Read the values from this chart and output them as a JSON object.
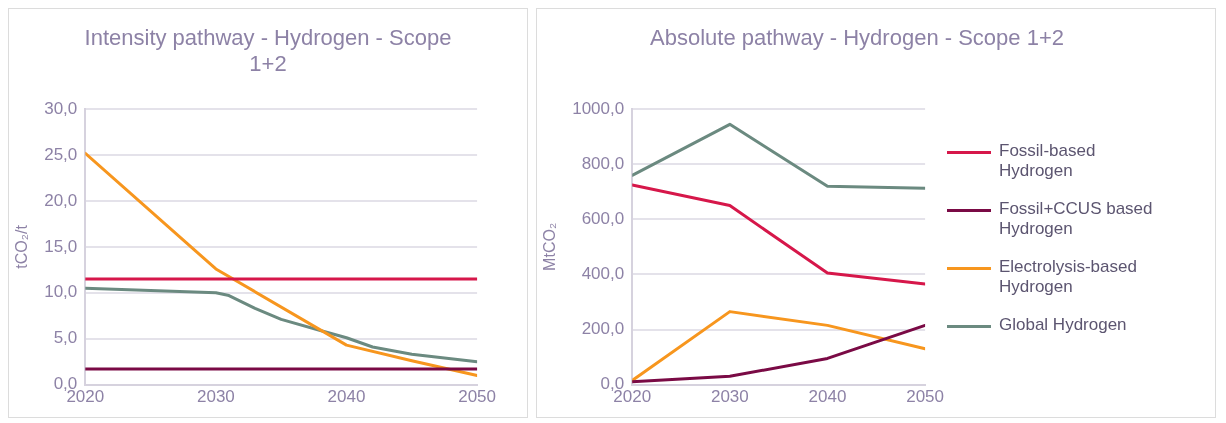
{
  "chart_data": [
    {
      "type": "line",
      "title": "Intensity pathway - Hydrogen - Scope 1+2",
      "ylabel": "tCO₂/t",
      "xlim": [
        2020,
        2050
      ],
      "xticks": [
        2020,
        2030,
        2040,
        2050
      ],
      "ylim": [
        0,
        30
      ],
      "yticks": [
        {
          "value": 0,
          "label": "0,0"
        },
        {
          "value": 5,
          "label": "5,0"
        },
        {
          "value": 10,
          "label": "10,0"
        },
        {
          "value": 15,
          "label": "15,0"
        },
        {
          "value": 20,
          "label": "20,0"
        },
        {
          "value": 25,
          "label": "25,0"
        },
        {
          "value": 30,
          "label": "30,0"
        }
      ],
      "grid": "y",
      "legend": false,
      "series": [
        {
          "color": "#d6174a",
          "x": [
            2020,
            2050
          ],
          "values": [
            11.5,
            11.5
          ]
        },
        {
          "color": "#7a0a45",
          "x": [
            2020,
            2050
          ],
          "values": [
            1.7,
            1.7
          ]
        },
        {
          "color": "#f7961e",
          "x": [
            2020,
            2030,
            2040,
            2045,
            2050
          ],
          "values": [
            25.2,
            12.6,
            4.3,
            2.6,
            1.0
          ]
        },
        {
          "color": "#6b8a80",
          "x": [
            2020,
            2030,
            2031,
            2033,
            2035,
            2038,
            2040,
            2042,
            2045,
            2050
          ],
          "values": [
            10.5,
            10.0,
            9.7,
            8.3,
            7.1,
            5.9,
            5.1,
            4.1,
            3.3,
            2.5
          ]
        }
      ]
    },
    {
      "type": "line",
      "title": "Absolute pathway - Hydrogen - Scope 1+2",
      "ylabel": "MtCO₂",
      "xlim": [
        2020,
        2050
      ],
      "xticks": [
        2020,
        2030,
        2040,
        2050
      ],
      "ylim": [
        0,
        1000
      ],
      "yticks": [
        {
          "value": 0,
          "label": "0,0"
        },
        {
          "value": 200,
          "label": "200,0"
        },
        {
          "value": 400,
          "label": "400,0"
        },
        {
          "value": 600,
          "label": "600,0"
        },
        {
          "value": 800,
          "label": "800,0"
        },
        {
          "value": 1000,
          "label": "1000,0"
        }
      ],
      "grid": "y",
      "legend": "right",
      "series": [
        {
          "name": "Fossil-based Hydrogen",
          "color": "#d6174a",
          "x": [
            2020,
            2030,
            2040,
            2050
          ],
          "values": [
            725,
            650,
            405,
            365
          ]
        },
        {
          "name": "Fossil+CCUS based Hydrogen",
          "color": "#7a0a45",
          "x": [
            2020,
            2030,
            2040,
            2050
          ],
          "values": [
            10,
            30,
            95,
            215
          ]
        },
        {
          "name": "Electrolysis-based Hydrogen",
          "color": "#f7961e",
          "x": [
            2020,
            2030,
            2040,
            2050
          ],
          "values": [
            15,
            265,
            215,
            130
          ]
        },
        {
          "name": "Global Hydrogen",
          "color": "#6b8a80",
          "x": [
            2020,
            2030,
            2040,
            2050
          ],
          "values": [
            760,
            945,
            720,
            713
          ]
        }
      ]
    }
  ]
}
